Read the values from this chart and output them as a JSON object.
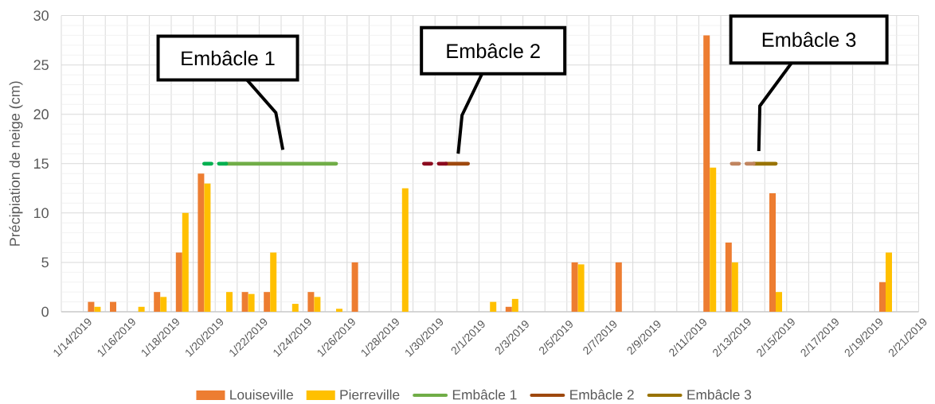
{
  "chart_data": {
    "type": "bar",
    "ylabel": "Précipiation de neige (cm)",
    "categories": [
      "1/14/2019",
      null,
      "1/16/2019",
      null,
      "1/18/2019",
      null,
      "1/20/2019",
      null,
      "1/22/2019",
      null,
      "1/24/2019",
      null,
      "1/26/2019",
      null,
      "1/28/2019",
      null,
      "1/30/2019",
      null,
      "2/1/2019",
      null,
      "2/3/2019",
      null,
      "2/5/2019",
      null,
      "2/7/2019",
      null,
      "2/9/2019",
      null,
      "2/11/2019",
      null,
      "2/13/2019",
      null,
      "2/15/2019",
      null,
      "2/17/2019",
      null,
      "2/19/2019",
      null,
      "2/21/2019"
    ],
    "ylim": [
      0,
      30
    ],
    "yticks": [
      0,
      5,
      10,
      15,
      20,
      25,
      30
    ],
    "grid": true,
    "legend": "bottom",
    "series": [
      {
        "name": "Louiseville",
        "color": "#ed7d31",
        "values": [
          null,
          1,
          1,
          null,
          2,
          6,
          14,
          null,
          2,
          2,
          null,
          2,
          null,
          5,
          null,
          null,
          null,
          null,
          null,
          null,
          0.5,
          null,
          null,
          5,
          null,
          5,
          null,
          null,
          null,
          28,
          7,
          null,
          12,
          null,
          null,
          null,
          null,
          3,
          null
        ]
      },
      {
        "name": "Pierreville",
        "color": "#ffc000",
        "values": [
          null,
          0.5,
          null,
          0.5,
          1.5,
          10,
          13,
          2,
          1.8,
          6,
          0.8,
          1.5,
          0.3,
          null,
          null,
          12.5,
          null,
          null,
          null,
          1,
          1.3,
          null,
          null,
          4.8,
          null,
          null,
          null,
          null,
          null,
          14.6,
          5,
          null,
          2,
          null,
          null,
          null,
          null,
          6,
          null
        ]
      },
      {
        "name": "Embâcle 1",
        "type": "line",
        "color": "#70ad47",
        "values": [
          null,
          null,
          null,
          null,
          null,
          null,
          null,
          15,
          15,
          15,
          15,
          15,
          15,
          null,
          null,
          null,
          null,
          null,
          null,
          null,
          null,
          null,
          null,
          null,
          null,
          null,
          null,
          null,
          null,
          null,
          null,
          null,
          null,
          null,
          null,
          null,
          null,
          null,
          null
        ]
      },
      {
        "type": "line",
        "color": "#00b050",
        "line_style": "dashed",
        "values": [
          null,
          null,
          null,
          null,
          null,
          null,
          15,
          15,
          null,
          null,
          null,
          null,
          null,
          null,
          null,
          null,
          null,
          null,
          null,
          null,
          null,
          null,
          null,
          null,
          null,
          null,
          null,
          null,
          null,
          null,
          null,
          null,
          null,
          null,
          null,
          null,
          null,
          null,
          null
        ]
      },
      {
        "name": "Embâcle 2",
        "type": "line",
        "color": "#9e480e",
        "values": [
          null,
          null,
          null,
          null,
          null,
          null,
          null,
          null,
          null,
          null,
          null,
          null,
          null,
          null,
          null,
          null,
          null,
          15,
          15,
          null,
          null,
          null,
          null,
          null,
          null,
          null,
          null,
          null,
          null,
          null,
          null,
          null,
          null,
          null,
          null,
          null,
          null,
          null,
          null
        ]
      },
      {
        "type": "line",
        "color": "#8b0a1e",
        "line_style": "dashed",
        "values": [
          null,
          null,
          null,
          null,
          null,
          null,
          null,
          null,
          null,
          null,
          null,
          null,
          null,
          null,
          null,
          null,
          15,
          15,
          null,
          null,
          null,
          null,
          null,
          null,
          null,
          null,
          null,
          null,
          null,
          null,
          null,
          null,
          null,
          null,
          null,
          null,
          null,
          null,
          null
        ]
      },
      {
        "name": "Embâcle 3",
        "type": "line",
        "color": "#997300",
        "values": [
          null,
          null,
          null,
          null,
          null,
          null,
          null,
          null,
          null,
          null,
          null,
          null,
          null,
          null,
          null,
          null,
          null,
          null,
          null,
          null,
          null,
          null,
          null,
          null,
          null,
          null,
          null,
          null,
          null,
          null,
          null,
          15,
          15,
          null,
          null,
          null,
          null,
          null,
          null
        ]
      },
      {
        "type": "line",
        "color": "#c0845e",
        "line_style": "dashed",
        "values": [
          null,
          null,
          null,
          null,
          null,
          null,
          null,
          null,
          null,
          null,
          null,
          null,
          null,
          null,
          null,
          null,
          null,
          null,
          null,
          null,
          null,
          null,
          null,
          null,
          null,
          null,
          null,
          null,
          null,
          null,
          15,
          15,
          null,
          null,
          null,
          null,
          null,
          null,
          null
        ]
      }
    ],
    "annotations": [
      "Embâcle 1",
      "Embâcle 2",
      "Embâcle 3"
    ]
  }
}
